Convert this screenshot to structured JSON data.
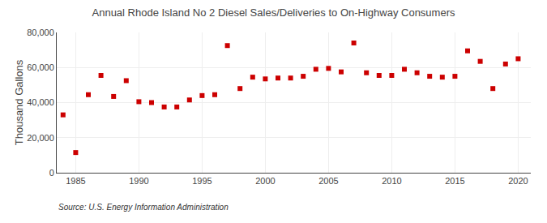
{
  "chart_data": {
    "type": "scatter",
    "title": "Annual Rhode Island No 2 Diesel Sales/Deliveries to On-Highway Consumers",
    "ylabel": "Thousand Gallons",
    "annotations": [
      "Source: U.S. Energy Information Administration"
    ],
    "x": [
      1984,
      1985,
      1986,
      1987,
      1988,
      1989,
      1990,
      1991,
      1992,
      1993,
      1994,
      1995,
      1996,
      1997,
      1998,
      1999,
      2000,
      2001,
      2002,
      2003,
      2004,
      2005,
      2006,
      2007,
      2008,
      2009,
      2010,
      2011,
      2012,
      2013,
      2014,
      2015,
      2016,
      2017,
      2018,
      2019,
      2020
    ],
    "values": [
      33000,
      11500,
      44500,
      55500,
      43500,
      52500,
      40500,
      40000,
      37500,
      37500,
      41500,
      44000,
      44500,
      72500,
      48000,
      54500,
      53500,
      54000,
      54000,
      55000,
      59000,
      59500,
      57500,
      74000,
      57000,
      55500,
      55500,
      59000,
      57000,
      55000,
      54500,
      55000,
      69500,
      63500,
      48000,
      62000,
      65000
    ],
    "color": "#cc0000",
    "marker": "square",
    "xlim": [
      1983.5,
      2021
    ],
    "ylim": [
      0,
      80000
    ],
    "xticks": [
      1985,
      1990,
      1995,
      2000,
      2005,
      2010,
      2015,
      2020
    ],
    "yticks": [
      0,
      {
        "value": 20000,
        "label": "20,000"
      },
      {
        "value": 40000,
        "label": "40,000"
      },
      {
        "value": 60000,
        "label": "60,000"
      },
      {
        "value": 80000,
        "label": "80,000"
      }
    ],
    "grid": true
  }
}
